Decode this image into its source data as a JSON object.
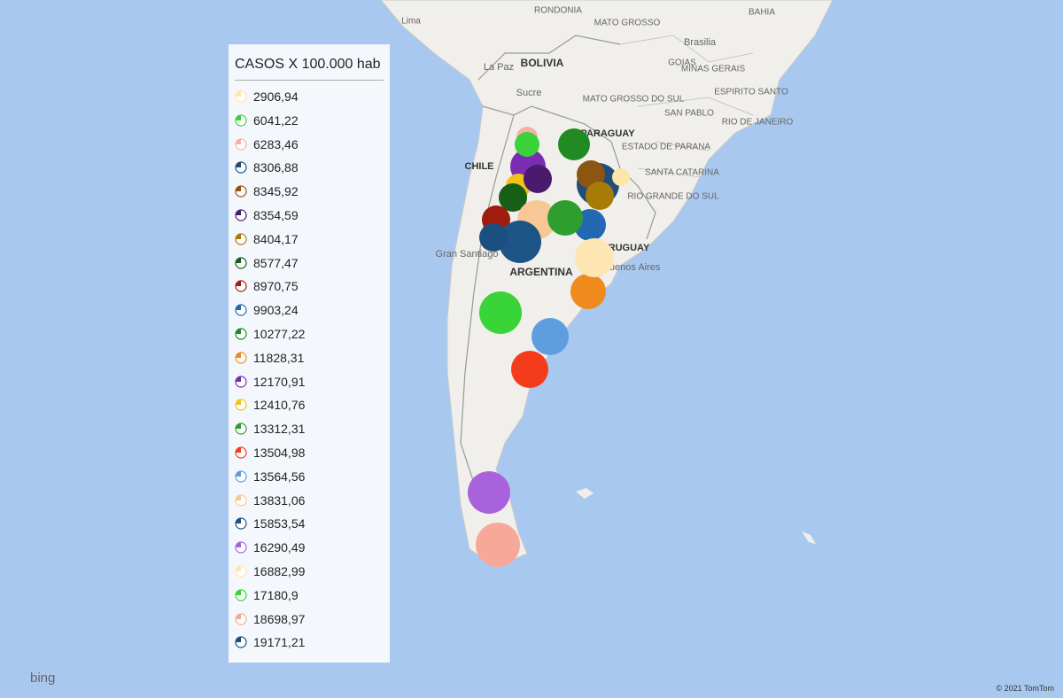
{
  "legend": {
    "title": "CASOS X 100.000 hab",
    "items": [
      {
        "value": {
          "value": 2906.94,
          "label": "2906,94"
        },
        "color": "#fde7a6"
      },
      {
        "value": {
          "value": 6041.22,
          "label": "6041,22"
        },
        "color": "#3cd23c"
      },
      {
        "value": {
          "value": 6283.46,
          "label": "6283,46"
        },
        "color": "#f7b0a6"
      },
      {
        "value": {
          "value": 8306.88,
          "label": "8306,88"
        },
        "color": "#1f4e7a"
      },
      {
        "value": {
          "value": 8345.92,
          "label": "8345,92"
        },
        "color": "#8c5512"
      },
      {
        "value": {
          "value": 8354.59,
          "label": "8354,59"
        },
        "color": "#4a1a6c"
      },
      {
        "value": {
          "value": 8404.17,
          "label": "8404,17"
        },
        "color": "#a67c06"
      },
      {
        "value": {
          "value": 8577.47,
          "label": "8577,47"
        },
        "color": "#175e17"
      },
      {
        "value": {
          "value": 8970.75,
          "label": "8970,75"
        },
        "color": "#a01c0c"
      },
      {
        "value": {
          "value": 9903.24,
          "label": "9903,24"
        },
        "color": "#2468b4"
      },
      {
        "value": {
          "value": 10277.22,
          "label": "10277,22"
        },
        "color": "#228a22"
      },
      {
        "value": {
          "value": 11828.31,
          "label": "11828,31"
        },
        "color": "#f08a1c"
      },
      {
        "value": {
          "value": 12170.91,
          "label": "12170,91"
        },
        "color": "#7a2db0"
      },
      {
        "value": {
          "value": 12410.76,
          "label": "12410,76"
        },
        "color": "#f3c31a"
      },
      {
        "value": {
          "value": 13312.31,
          "label": "13312,31"
        },
        "color": "#2e9e2e"
      },
      {
        "value": {
          "value": 13504.98,
          "label": "13504,98"
        },
        "color": "#f43c1c"
      },
      {
        "value": {
          "value": 13564.56,
          "label": "13564,56"
        },
        "color": "#5f9ede"
      },
      {
        "value": {
          "value": 13831.06,
          "label": "13831,06"
        },
        "color": "#f7c896"
      },
      {
        "value": {
          "value": 15853.54,
          "label": "15853,54"
        },
        "color": "#1c5585"
      },
      {
        "value": {
          "value": 16290.49,
          "label": "16290,49"
        },
        "color": "#a863dc"
      },
      {
        "value": {
          "value": 16882.99,
          "label": "16882,99"
        },
        "color": "#fde6b2"
      },
      {
        "value": {
          "value": 17180.9,
          "label": "17180,9"
        },
        "color": "#38d438"
      },
      {
        "value": {
          "value": 18698.97,
          "label": "18698,97"
        },
        "color": "#f8a898"
      },
      {
        "value": {
          "value": 19171.21,
          "label": "19171,21"
        },
        "color": "#1a4f80"
      }
    ]
  },
  "map_labels": [
    "Lima",
    "RONDONIA",
    "MATO GROSSO",
    "BAHIA",
    "Brasilia",
    "GOIAS",
    "MINAS GERAIS",
    "La Paz",
    "BOLIVIA",
    "Sucre",
    "MATO GROSSO DO SUL",
    "ESPIRITO SANTO",
    "SAN PABLO",
    "RIO DE JANEIRO",
    "ESTADO DE PARANA",
    "CHILE",
    "PARAGUAY",
    "SANTA CATARINA",
    "RIO GRANDE DO SUL",
    "Gran Santiago",
    "ARGENTINA",
    "URUGUAY",
    "Buenos Aires"
  ],
  "logo": "bing",
  "copyright": "© 2021 TomTom"
}
